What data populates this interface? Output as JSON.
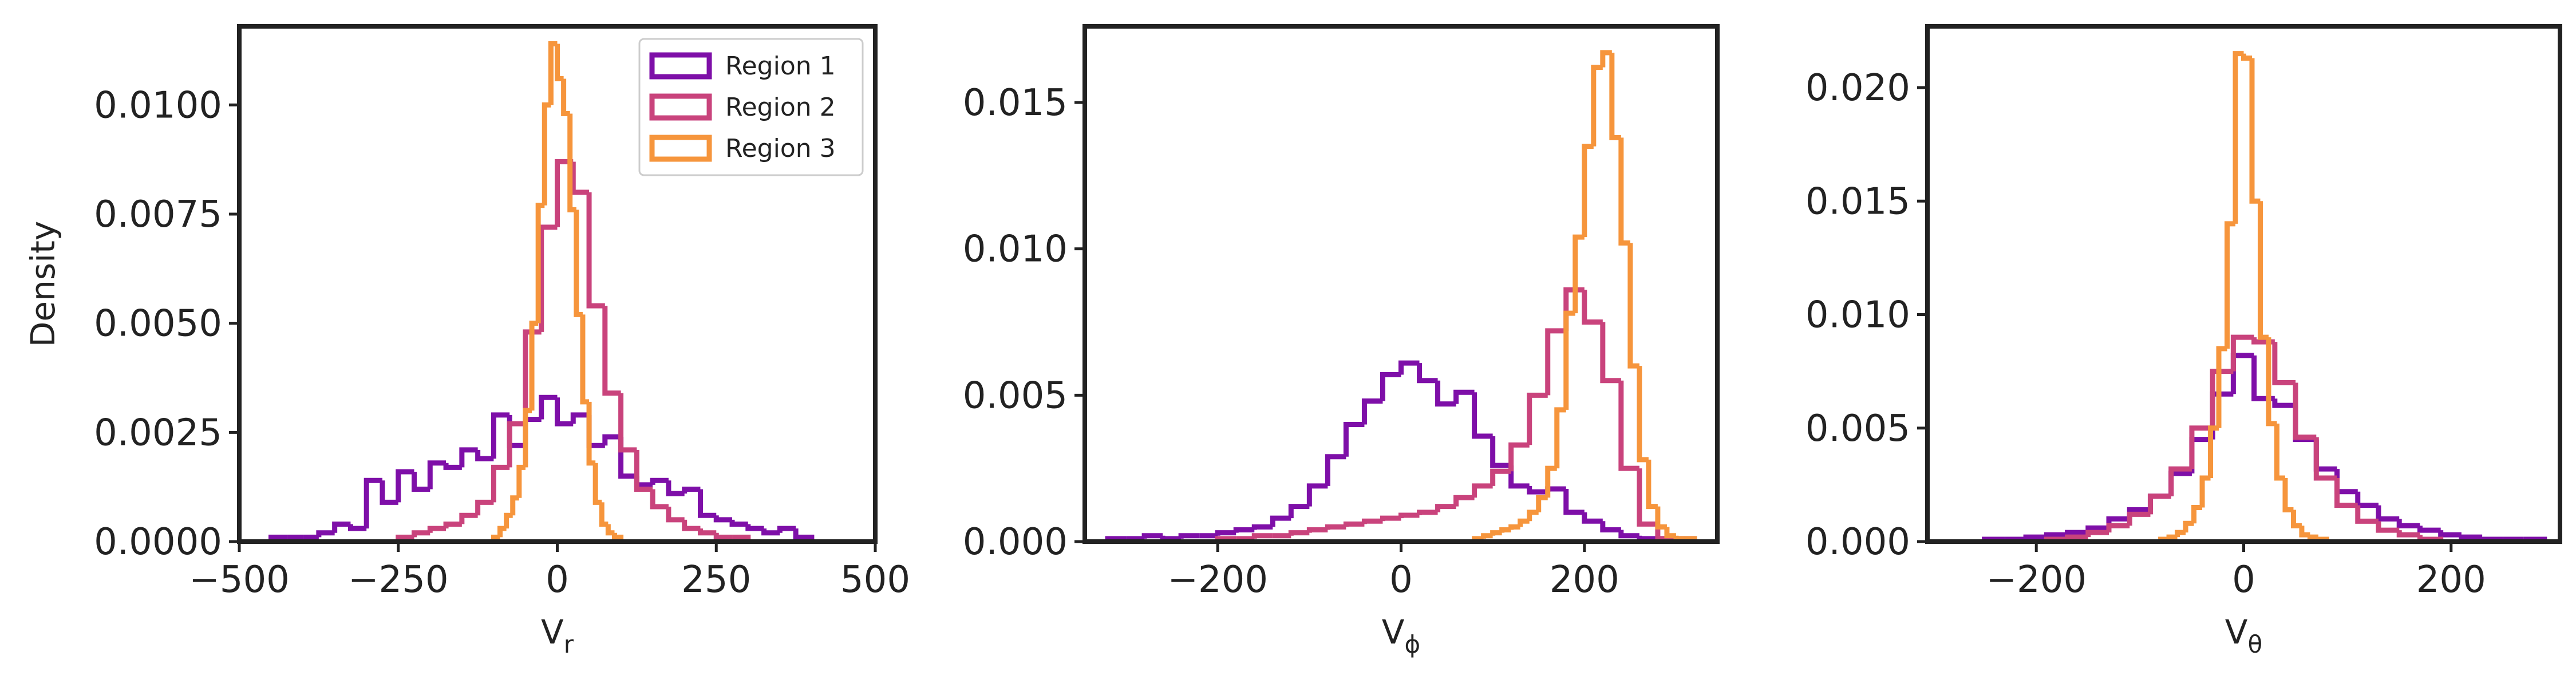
{
  "chart_data": [
    {
      "type": "histogram",
      "xlabel": "V",
      "xlabel_sub": "r",
      "ylabel": "Density",
      "legend": "upper right",
      "xlim": [
        -500,
        500
      ],
      "ylim": [
        0,
        0.0118
      ],
      "xticks": [
        {
          "value": -500,
          "label": "−500"
        },
        {
          "value": -250,
          "label": "−250"
        },
        0,
        250,
        500
      ],
      "yticks": [
        {
          "value": 0,
          "label": "0.0000"
        },
        {
          "value": 0.0025,
          "label": "0.0025"
        },
        {
          "value": 0.005,
          "label": "0.0050"
        },
        {
          "value": 0.0075,
          "label": "0.0075"
        },
        {
          "value": 0.01,
          "label": "0.0100"
        }
      ],
      "series": [
        {
          "name": "Region 1",
          "color": "#7e0fa8",
          "bins": [
            -450,
            -425,
            -400,
            -375,
            -350,
            -325,
            -300,
            -275,
            -250,
            -225,
            -200,
            -175,
            -150,
            -125,
            -100,
            -75,
            -50,
            -25,
            0,
            25,
            50,
            75,
            100,
            125,
            150,
            175,
            200,
            225,
            250,
            275,
            300,
            325,
            350,
            375,
            400
          ],
          "values": [
            0.0001,
            0.0001,
            0.0001,
            0.0002,
            0.0004,
            0.0003,
            0.0014,
            0.0009,
            0.0016,
            0.0012,
            0.0018,
            0.0017,
            0.0021,
            0.0019,
            0.0029,
            0.0022,
            0.0028,
            0.0033,
            0.0027,
            0.0029,
            0.0022,
            0.0024,
            0.0015,
            0.0013,
            0.0014,
            0.0011,
            0.0012,
            0.0006,
            0.0005,
            0.0004,
            0.0003,
            0.0002,
            0.0003,
            0.0001
          ]
        },
        {
          "name": "Region 2",
          "color": "#c9437c",
          "bins": [
            -250,
            -225,
            -200,
            -175,
            -150,
            -125,
            -100,
            -75,
            -50,
            -25,
            0,
            25,
            50,
            75,
            100,
            125,
            150,
            175,
            200,
            225,
            250,
            275,
            300
          ],
          "values": [
            0.0001,
            0.0002,
            0.0003,
            0.0004,
            0.0006,
            0.0009,
            0.0017,
            0.0027,
            0.0048,
            0.0072,
            0.0087,
            0.008,
            0.0054,
            0.0034,
            0.0021,
            0.0012,
            0.0008,
            0.0005,
            0.0003,
            0.0002,
            0.0001,
            0.0001
          ]
        },
        {
          "name": "Region 3",
          "color": "#f6953c",
          "bins": [
            -100,
            -90,
            -80,
            -70,
            -60,
            -50,
            -40,
            -30,
            -20,
            -10,
            0,
            10,
            20,
            30,
            40,
            50,
            60,
            70,
            80,
            90,
            100
          ],
          "values": [
            0.0001,
            0.0003,
            0.0006,
            0.001,
            0.0017,
            0.003,
            0.005,
            0.0077,
            0.01,
            0.0114,
            0.0106,
            0.0098,
            0.0076,
            0.0052,
            0.0032,
            0.0018,
            0.0009,
            0.0004,
            0.0002,
            0.0001
          ]
        }
      ]
    },
    {
      "type": "histogram",
      "xlabel": "V",
      "xlabel_sub": "ϕ",
      "xlim": [
        -345,
        345
      ],
      "ylim": [
        0,
        0.0176
      ],
      "xticks": [
        {
          "value": -200,
          "label": "−200"
        },
        0,
        200
      ],
      "yticks": [
        {
          "value": 0,
          "label": "0.000"
        },
        {
          "value": 0.005,
          "label": "0.005"
        },
        {
          "value": 0.01,
          "label": "0.010"
        },
        {
          "value": 0.015,
          "label": "0.015"
        }
      ],
      "series": [
        {
          "color": "#7e0fa8",
          "bins": [
            -320,
            -300,
            -280,
            -260,
            -240,
            -220,
            -200,
            -180,
            -160,
            -140,
            -120,
            -100,
            -80,
            -60,
            -40,
            -20,
            0,
            20,
            40,
            60,
            80,
            100,
            120,
            140,
            160,
            180,
            200,
            220,
            240,
            260,
            280,
            300,
            320
          ],
          "values": [
            0.0001,
            0.0001,
            0.0002,
            0.0001,
            0.0002,
            0.0002,
            0.0003,
            0.0004,
            0.0005,
            0.0008,
            0.0012,
            0.0019,
            0.0029,
            0.004,
            0.0048,
            0.0057,
            0.0061,
            0.0055,
            0.0047,
            0.0051,
            0.0036,
            0.0026,
            0.0019,
            0.0017,
            0.0018,
            0.001,
            0.0007,
            0.0004,
            0.0002,
            0.0001,
            0.0001,
            0.0001
          ]
        },
        {
          "color": "#c9437c",
          "bins": [
            -200,
            -180,
            -160,
            -140,
            -120,
            -100,
            -80,
            -60,
            -40,
            -20,
            0,
            20,
            40,
            60,
            80,
            100,
            120,
            140,
            160,
            180,
            200,
            220,
            240,
            260,
            280,
            300
          ],
          "values": [
            0.0001,
            0.0001,
            0.0002,
            0.0002,
            0.0003,
            0.0004,
            0.0005,
            0.0006,
            0.0007,
            0.0008,
            0.0009,
            0.001,
            0.0012,
            0.0015,
            0.0019,
            0.0024,
            0.0033,
            0.005,
            0.0072,
            0.0086,
            0.0075,
            0.0055,
            0.0025,
            0.0006,
            0.0001
          ]
        },
        {
          "color": "#f6953c",
          "bins": [
            80,
            90,
            100,
            110,
            120,
            130,
            140,
            150,
            160,
            170,
            180,
            190,
            200,
            210,
            220,
            230,
            240,
            250,
            260,
            270,
            280,
            290,
            300,
            310,
            320
          ],
          "values": [
            0.0001,
            0.0002,
            0.0003,
            0.0004,
            0.0005,
            0.0007,
            0.001,
            0.0015,
            0.0025,
            0.0045,
            0.0078,
            0.0104,
            0.0135,
            0.0162,
            0.0167,
            0.0138,
            0.0102,
            0.006,
            0.0028,
            0.0012,
            0.0005,
            0.0002,
            0.0001,
            0.0001
          ]
        }
      ]
    },
    {
      "type": "histogram",
      "xlabel": "V",
      "xlabel_sub": "θ",
      "xlim": [
        -305,
        305
      ],
      "ylim": [
        0,
        0.0227
      ],
      "xticks": [
        {
          "value": -200,
          "label": "−200"
        },
        0,
        200
      ],
      "yticks": [
        {
          "value": 0,
          "label": "0.000"
        },
        {
          "value": 0.005,
          "label": "0.005"
        },
        {
          "value": 0.01,
          "label": "0.010"
        },
        {
          "value": 0.015,
          "label": "0.015"
        },
        {
          "value": 0.02,
          "label": "0.020"
        }
      ],
      "series": [
        {
          "color": "#7e0fa8",
          "bins": [
            -250,
            -230,
            -210,
            -190,
            -170,
            -150,
            -130,
            -110,
            -90,
            -70,
            -50,
            -30,
            -10,
            10,
            30,
            50,
            70,
            90,
            110,
            130,
            150,
            170,
            190,
            210,
            230,
            250,
            270,
            290
          ],
          "values": [
            0.0001,
            0.0001,
            0.0002,
            0.0003,
            0.0004,
            0.0006,
            0.001,
            0.0014,
            0.002,
            0.003,
            0.0045,
            0.0065,
            0.0082,
            0.0063,
            0.006,
            0.0045,
            0.0032,
            0.0022,
            0.0016,
            0.001,
            0.0007,
            0.0005,
            0.0003,
            0.0002,
            0.0001,
            0.0001,
            0.0001
          ]
        },
        {
          "color": "#c9437c",
          "bins": [
            -190,
            -170,
            -150,
            -130,
            -110,
            -90,
            -70,
            -50,
            -30,
            -10,
            10,
            30,
            50,
            70,
            90,
            110,
            130,
            150,
            170,
            190
          ],
          "values": [
            0.0001,
            0.0002,
            0.0004,
            0.0007,
            0.0012,
            0.002,
            0.0032,
            0.005,
            0.0075,
            0.009,
            0.0088,
            0.007,
            0.0046,
            0.0028,
            0.0016,
            0.0009,
            0.0005,
            0.0003,
            0.0001
          ]
        },
        {
          "color": "#f6953c",
          "bins": [
            -80,
            -72,
            -64,
            -56,
            -48,
            -40,
            -32,
            -24,
            -16,
            -8,
            0,
            8,
            16,
            24,
            32,
            40,
            48,
            56,
            64,
            72,
            80
          ],
          "values": [
            0.0001,
            0.0002,
            0.0004,
            0.0008,
            0.0015,
            0.0028,
            0.005,
            0.0085,
            0.014,
            0.0215,
            0.0213,
            0.015,
            0.009,
            0.0052,
            0.0028,
            0.0014,
            0.0007,
            0.0003,
            0.0002,
            0.0001
          ]
        }
      ]
    }
  ]
}
